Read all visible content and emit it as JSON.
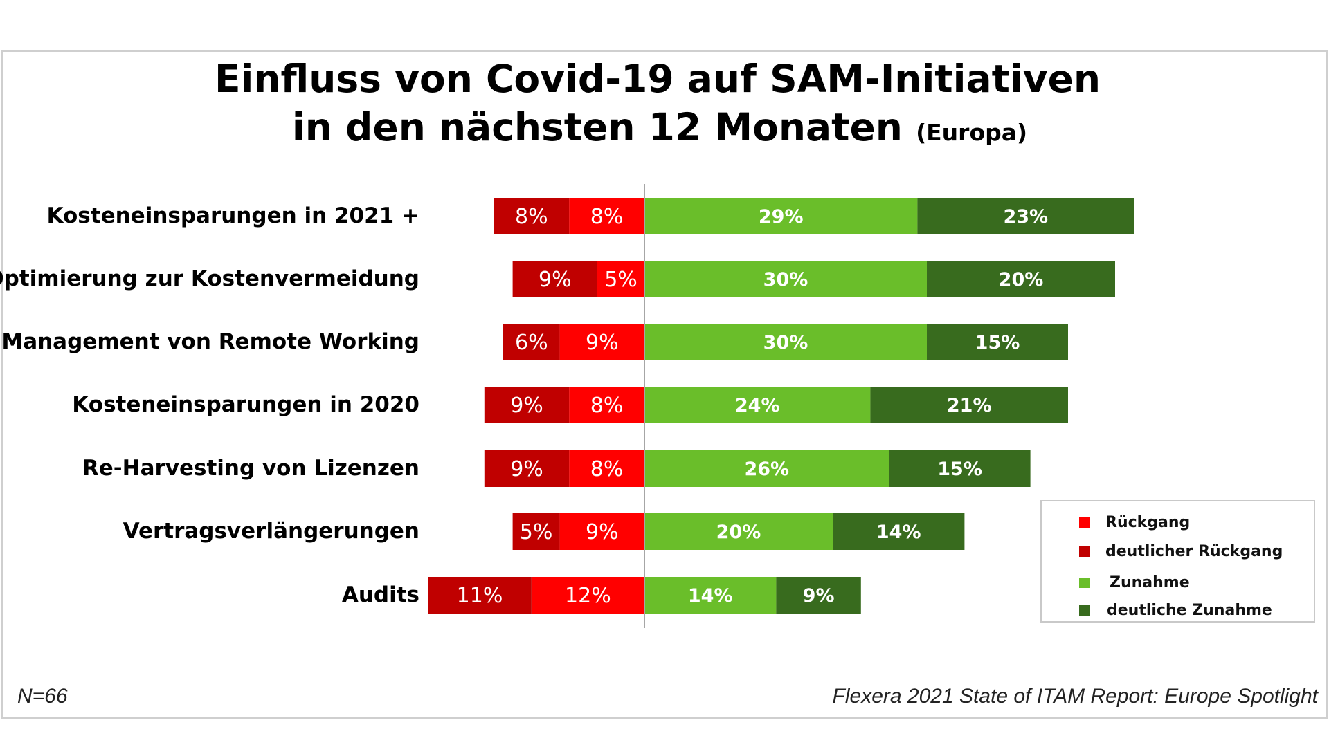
{
  "title": {
    "line1": "Einfluss von Covid-19 auf SAM-Initiativen",
    "line2": "in den nächsten 12 Monaten",
    "line2_sub": "(Europa)"
  },
  "colors": {
    "rueckgang": "#ff0000",
    "deutlicher_rueckgang": "#c00000",
    "zunahme": "#6abe2a",
    "deutliche_zunahme": "#386b1e"
  },
  "chart_data": {
    "type": "bar",
    "orientation": "horizontal-diverging",
    "title": "Einfluss von Covid-19 auf SAM-Initiativen in den nächsten 12 Monaten (Europa)",
    "unit": "%",
    "categories": [
      "Kosteneinsparungen in 2021 +",
      "Optimierung zur Kostenvermeidung",
      "Management von Remote Working",
      "Kosteneinsparungen in 2020",
      "Re-Harvesting von Lizenzen",
      "Vertragsverlängerungen",
      "Audits"
    ],
    "series": [
      {
        "name": "deutlicher Rückgang",
        "key": "deutlicher_rueckgang",
        "direction": "negative",
        "values": [
          8,
          9,
          6,
          9,
          9,
          5,
          11
        ]
      },
      {
        "name": "Rückgang",
        "key": "rueckgang",
        "direction": "negative",
        "values": [
          8,
          5,
          9,
          8,
          8,
          9,
          12
        ]
      },
      {
        "name": "Zunahme",
        "key": "zunahme",
        "direction": "positive",
        "values": [
          29,
          30,
          30,
          24,
          26,
          20,
          14
        ]
      },
      {
        "name": "deutliche Zunahme",
        "key": "deutliche_zunahme",
        "direction": "positive",
        "values": [
          23,
          20,
          15,
          21,
          15,
          14,
          9
        ]
      }
    ],
    "legend": {
      "position": "right",
      "items": [
        {
          "label": "Rückgang",
          "key": "rueckgang"
        },
        {
          "label": "deutlicher Rückgang",
          "key": "deutlicher_rueckgang"
        },
        {
          "label": "Zunahme",
          "key": "zunahme"
        },
        {
          "label": "deutliche Zunahme",
          "key": "deutliche_zunahme"
        }
      ]
    }
  },
  "footer": {
    "sample": "N=66",
    "source": "Flexera 2021 State of ITAM Report: Europe Spotlight"
  }
}
